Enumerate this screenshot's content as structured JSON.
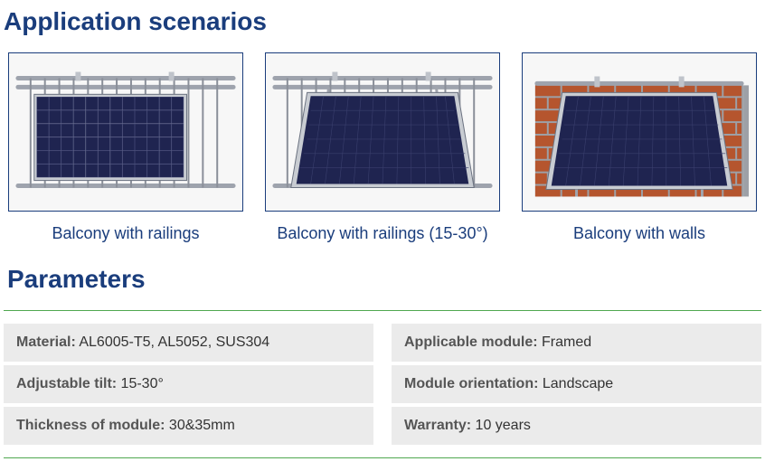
{
  "sections": {
    "scenarios_title": "Application scenarios",
    "parameters_title": "Parameters"
  },
  "scenarios": [
    {
      "caption": "Balcony with railings"
    },
    {
      "caption": "Balcony with railings (15-30°)"
    },
    {
      "caption": "Balcony with walls"
    }
  ],
  "parameters": {
    "left": [
      {
        "label": "Material:",
        "value": " AL6005-T5, AL5052, SUS304"
      },
      {
        "label": "Adjustable tilt:",
        "value": " 15-30°"
      },
      {
        "label": "Thickness of module:",
        "value": " 30&35mm"
      }
    ],
    "right": [
      {
        "label": "Applicable module:",
        "value": " Framed"
      },
      {
        "label": "Module orientation:",
        "value": " Landscape"
      },
      {
        "label": "Warranty:",
        "value": " 10 years"
      }
    ]
  },
  "style": {
    "title_color": "#1a3d7c",
    "border_color": "#1a3d7c",
    "hr_color": "#4fa84f",
    "row_bg": "#ebebeb",
    "panel_cell_color": "#1f2450",
    "panel_cols": 12,
    "panel_rows": 6,
    "brick_color": "#b5552e",
    "rail_color": "#8a8f99"
  }
}
